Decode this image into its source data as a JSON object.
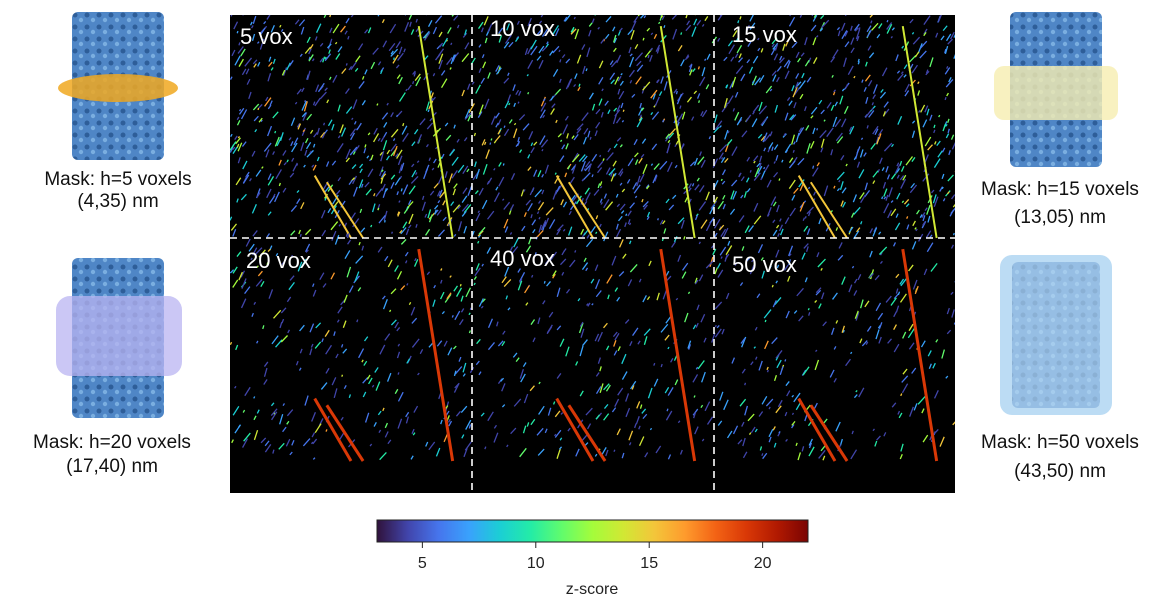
{
  "panels": [
    "5 vox",
    "10 vox",
    "15 vox",
    "20 vox",
    "40 vox",
    "50 vox"
  ],
  "masks": [
    {
      "label": "Mask: h=5 voxels",
      "size": "(4,35) nm"
    },
    {
      "label": "Mask: h=20 voxels",
      "size": "(17,40) nm"
    },
    {
      "label": "Mask: h=15 voxels",
      "size": "(13,05) nm"
    },
    {
      "label": "Mask: h=50 voxels",
      "size": "(43,50) nm"
    }
  ],
  "colorbar": {
    "label": "z-score",
    "lim": [
      3,
      22
    ],
    "ticks": [
      5,
      10,
      15,
      20
    ],
    "colormap": "turbo"
  }
}
